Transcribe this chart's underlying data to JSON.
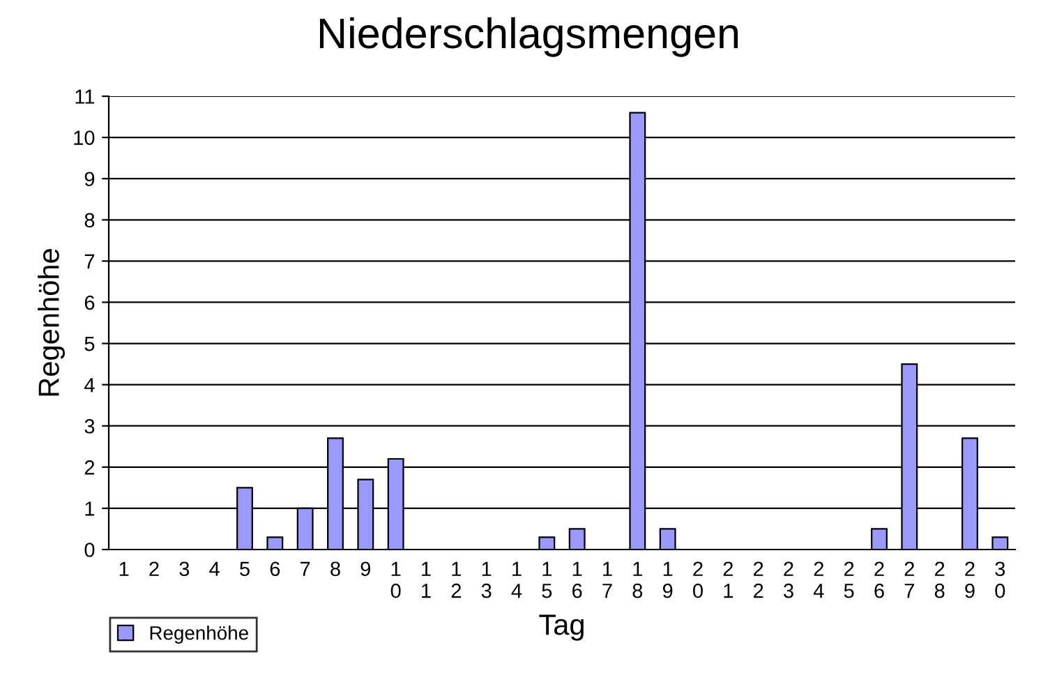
{
  "chart_data": {
    "type": "bar",
    "title": "Niederschlagsmengen",
    "xlabel": "Tag",
    "ylabel": "Regenhöhe",
    "categories": [
      "1",
      "2",
      "3",
      "4",
      "5",
      "6",
      "7",
      "8",
      "9",
      "10",
      "11",
      "12",
      "13",
      "14",
      "15",
      "16",
      "17",
      "18",
      "19",
      "20",
      "21",
      "22",
      "23",
      "24",
      "25",
      "26",
      "27",
      "28",
      "29",
      "30"
    ],
    "series": [
      {
        "name": "Regenhöhe",
        "color": "#9999ff",
        "values": [
          null,
          null,
          null,
          null,
          1.5,
          0.3,
          1.0,
          2.7,
          1.7,
          2.2,
          null,
          null,
          null,
          null,
          0.3,
          0.5,
          null,
          10.6,
          0.5,
          null,
          null,
          null,
          null,
          null,
          null,
          0.5,
          4.5,
          null,
          2.7,
          0.3
        ]
      }
    ],
    "ylim": [
      0,
      11
    ],
    "yticks": [
      0,
      1,
      2,
      3,
      4,
      5,
      6,
      7,
      8,
      9,
      10,
      11
    ],
    "grid": "y",
    "legend": "bottom left"
  }
}
